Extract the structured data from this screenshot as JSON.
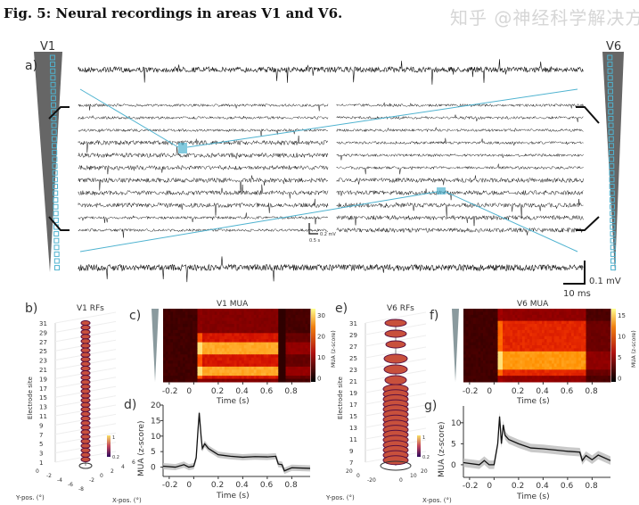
{
  "title": "Fig. 5: Neural recordings in areas V1 and V6.",
  "panel_labels": {
    "a": "a)",
    "b": "b)",
    "c": "c)",
    "d": "d)",
    "e": "e)",
    "f": "f)",
    "g": "g)"
  },
  "area_labels": {
    "v1": "V1",
    "v6": "V6"
  },
  "scale_bars": {
    "small_v": "0.2 mV",
    "small_t": "0.5 s",
    "large_v": "0.1 mV",
    "large_t": "10 ms"
  },
  "colors": {
    "shank": "#666666",
    "contacts": "#4fb3d0",
    "zoom_lines": "#4fb3d0",
    "trace": "#111111"
  },
  "chart_data": [
    {
      "id": "b",
      "type": "scatter",
      "title": "V1 RFs",
      "ylabel": "Electrode site",
      "xlabel": "X-pos. (°)",
      "zlabel": "Y-pos. (°)",
      "site_ticks": [
        "1",
        "3",
        "5",
        "7",
        "9",
        "11",
        "13",
        "15",
        "17",
        "19",
        "21",
        "23",
        "25",
        "27",
        "29",
        "31"
      ],
      "x_ticks": [
        "-2",
        "0",
        "2",
        "4",
        "6"
      ],
      "y_ticks": [
        "0",
        "-2",
        "-4",
        "-6",
        "-8"
      ],
      "colorbar": [
        "1",
        "0.2"
      ],
      "sites": [
        1,
        31
      ]
    },
    {
      "id": "c",
      "type": "heatmap",
      "title": "V1 MUA",
      "xlabel": "Time (s)",
      "colorbar_label": "MUA (z-score)",
      "colorbar_ticks": [
        "30",
        "20",
        "10",
        "0"
      ],
      "x_ticks": [
        "-0.2",
        "0",
        "0.2",
        "0.4",
        "0.6",
        "0.8"
      ],
      "xlim": [
        -0.25,
        0.95
      ]
    },
    {
      "id": "d",
      "type": "line",
      "xlabel": "Time (s)",
      "ylabel": "MUA (z-score)",
      "x_ticks": [
        "-0.2",
        "0",
        "0.2",
        "0.4",
        "0.6",
        "0.8"
      ],
      "y_ticks": [
        "0",
        "5",
        "10",
        "15",
        "20"
      ],
      "xlim": [
        -0.25,
        0.95
      ],
      "ylim": [
        -3,
        20
      ],
      "x": [
        -0.25,
        -0.15,
        -0.08,
        -0.04,
        0,
        0.02,
        0.035,
        0.045,
        0.06,
        0.07,
        0.09,
        0.12,
        0.2,
        0.3,
        0.4,
        0.5,
        0.6,
        0.67,
        0.69,
        0.72,
        0.74,
        0.8,
        0.95
      ],
      "y": [
        0.3,
        0,
        0.8,
        0,
        0.3,
        3,
        12,
        17.5,
        10,
        6,
        7.5,
        6,
        4,
        3.5,
        3.2,
        3.4,
        3.3,
        3.5,
        1,
        0.8,
        -1.2,
        -0.2,
        -0.4
      ]
    },
    {
      "id": "e",
      "type": "scatter",
      "title": "V6 RFs",
      "ylabel": "Electrode site",
      "xlabel": "X-pos. (°)",
      "zlabel": "Y-pos. (°)",
      "site_ticks": [
        "7",
        "9",
        "11",
        "13",
        "15",
        "17",
        "19",
        "21",
        "23",
        "25",
        "27",
        "29",
        "31"
      ],
      "x_ticks": [
        "0",
        "10",
        "20"
      ],
      "y_ticks": [
        "20",
        "0",
        "-20"
      ],
      "colorbar": [
        "1",
        "0.2"
      ]
    },
    {
      "id": "f",
      "type": "heatmap",
      "title": "V6 MUA",
      "xlabel": "Time (s)",
      "colorbar_label": "MUA (z-score)",
      "colorbar_ticks": [
        "15",
        "10",
        "5",
        "0"
      ],
      "x_ticks": [
        "-0.2",
        "0",
        "0.2",
        "0.4",
        "0.6",
        "0.8"
      ],
      "xlim": [
        -0.25,
        0.95
      ]
    },
    {
      "id": "g",
      "type": "line",
      "xlabel": "Time (s)",
      "ylabel": "MUA (z-score)",
      "x_ticks": [
        "-0.2",
        "0",
        "0.2",
        "0.4",
        "0.6",
        "0.8"
      ],
      "y_ticks": [
        "0",
        "5",
        "10"
      ],
      "xlim": [
        -0.25,
        0.95
      ],
      "ylim": [
        -3,
        14
      ],
      "x": [
        -0.25,
        -0.12,
        -0.08,
        -0.04,
        0,
        0.03,
        0.045,
        0.06,
        0.075,
        0.09,
        0.12,
        0.2,
        0.3,
        0.4,
        0.5,
        0.6,
        0.7,
        0.72,
        0.75,
        0.8,
        0.85,
        0.95
      ],
      "y": [
        0.5,
        0,
        1,
        0,
        0,
        5,
        11.5,
        5,
        9.5,
        7,
        6,
        5,
        4,
        3.8,
        3.5,
        3.2,
        3,
        1,
        2.2,
        1.2,
        2.3,
        1
      ]
    }
  ],
  "watermark": "知乎 @神经科学解决方案"
}
